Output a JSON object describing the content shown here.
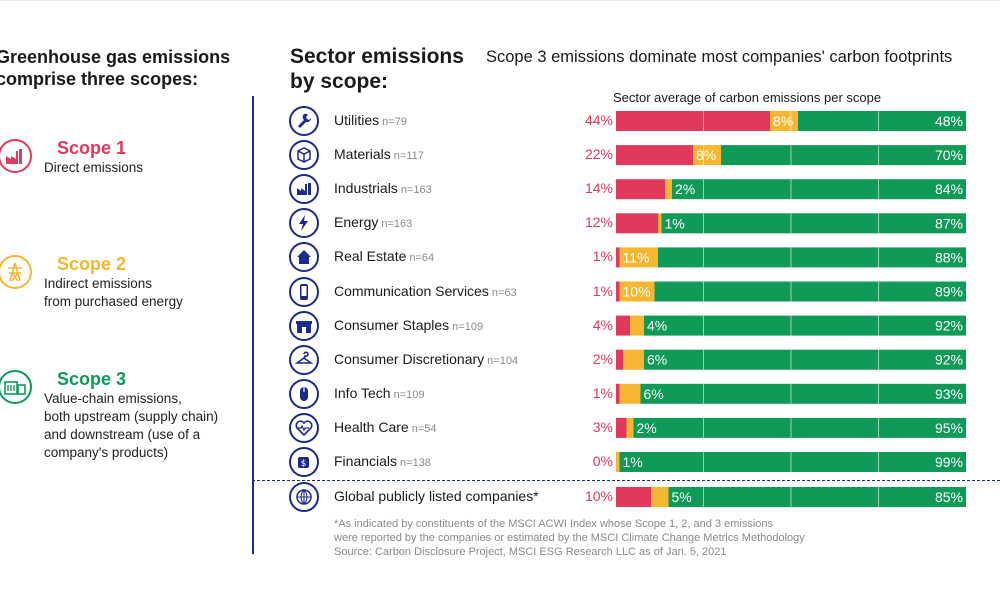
{
  "left_panel": {
    "title": "Greenhouse gas emissions\ncomprise three scopes:",
    "scopes": [
      {
        "name": "Scope 1",
        "description": "Direct emissions",
        "color": "#e0395b",
        "icon": "factory-icon"
      },
      {
        "name": "Scope 2",
        "description": "Indirect emissions\nfrom purchased energy",
        "color": "#f5b731",
        "icon": "power-tower-icon"
      },
      {
        "name": "Scope 3",
        "description": "Value-chain emissions,\nboth upstream (supply chain)\nand downstream (use of a\ncompany's products)",
        "color": "#0f9a58",
        "icon": "supply-chain-icon"
      }
    ]
  },
  "chart_title": "Sector emissions\nby scope:",
  "headline": "Scope 3 emissions dominate most companies' carbon footprints",
  "colors": {
    "scope1": "#e0395b",
    "scope2": "#f5b731",
    "scope3": "#0f9a58",
    "navy": "#1b2b8a"
  },
  "chart_data": {
    "type": "bar",
    "orientation": "horizontal",
    "stacked": true,
    "title": "Sector average of carbon emissions per scope",
    "unit": "%",
    "xlim": [
      0,
      100
    ],
    "series_names": [
      "Scope 1",
      "Scope 2",
      "Scope 3"
    ],
    "rows": [
      {
        "sector": "Utilities",
        "n": "n=79",
        "icon": "wrench-icon",
        "values": [
          44,
          8,
          48
        ]
      },
      {
        "sector": "Materials",
        "n": "n=117",
        "icon": "box-icon",
        "values": [
          22,
          8,
          70
        ]
      },
      {
        "sector": "Industrials",
        "n": "n=163",
        "icon": "factory-icon",
        "values": [
          14,
          2,
          84
        ]
      },
      {
        "sector": "Energy",
        "n": "n=163",
        "icon": "lightning-icon",
        "values": [
          12,
          1,
          87
        ]
      },
      {
        "sector": "Real Estate",
        "n": "n=64",
        "icon": "house-icon",
        "values": [
          1,
          11,
          88
        ]
      },
      {
        "sector": "Communication Services",
        "n": "n=63",
        "icon": "phone-icon",
        "values": [
          1,
          10,
          89
        ]
      },
      {
        "sector": "Consumer Staples",
        "n": "n=109",
        "icon": "store-icon",
        "values": [
          4,
          4,
          92
        ]
      },
      {
        "sector": "Consumer Discretionary",
        "n": "n=104",
        "icon": "hanger-icon",
        "values": [
          2,
          6,
          92
        ]
      },
      {
        "sector": "Info Tech",
        "n": "n=109",
        "icon": "mouse-icon",
        "values": [
          1,
          6,
          93
        ]
      },
      {
        "sector": "Health Care",
        "n": "n=54",
        "icon": "heart-icon",
        "values": [
          3,
          2,
          95
        ]
      },
      {
        "sector": "Financials",
        "n": "n=138",
        "icon": "money-icon",
        "values": [
          0,
          1,
          99
        ]
      }
    ],
    "total": {
      "sector": "Global publicly listed companies*",
      "icon": "globe-icon",
      "values": [
        10,
        5,
        85
      ]
    }
  },
  "footnote": "*As indicated by constituents of the MSCI ACWI Index whose Scope 1, 2, and 3 emissions\n were reported by the companies or estimated by the MSCI Climate Change Metrics Methodology\n Source: Carbon Disclosure Project, MSCI ESG Research LLC as of Jan. 5, 2021"
}
